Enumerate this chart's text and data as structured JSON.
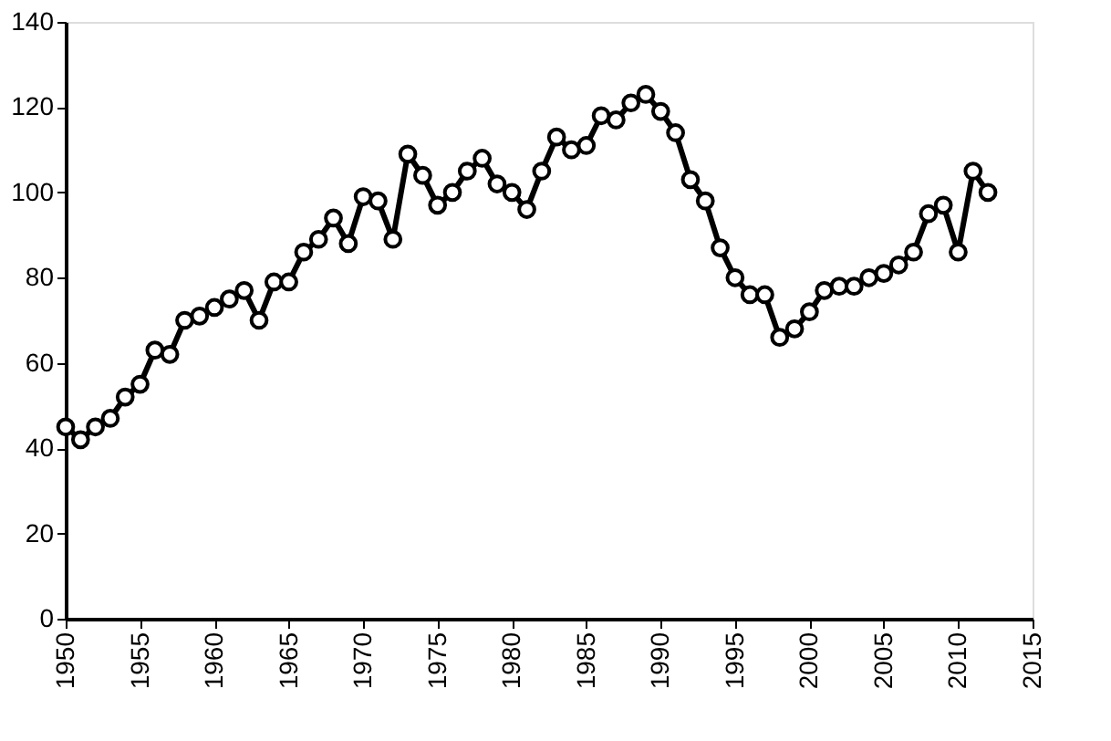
{
  "chart_data": {
    "type": "line",
    "x": [
      1950,
      1951,
      1952,
      1953,
      1954,
      1955,
      1956,
      1957,
      1958,
      1959,
      1960,
      1961,
      1962,
      1963,
      1964,
      1965,
      1966,
      1967,
      1968,
      1969,
      1970,
      1971,
      1972,
      1973,
      1974,
      1975,
      1976,
      1977,
      1978,
      1979,
      1980,
      1981,
      1982,
      1983,
      1984,
      1985,
      1986,
      1987,
      1988,
      1989,
      1990,
      1991,
      1992,
      1993,
      1994,
      1995,
      1996,
      1997,
      1998,
      1999,
      2000,
      2001,
      2002,
      2003,
      2004,
      2005,
      2006,
      2007,
      2008,
      2009,
      2010,
      2011,
      2012
    ],
    "series": [
      {
        "color": "#000000",
        "values": [
          45,
          42,
          45,
          47,
          52,
          55,
          63,
          62,
          70,
          71,
          73,
          75,
          77,
          70,
          79,
          79,
          86,
          89,
          94,
          88,
          99,
          98,
          89,
          109,
          104,
          97,
          100,
          105,
          108,
          102,
          100,
          96,
          105,
          113,
          110,
          111,
          118,
          117,
          121,
          123,
          119,
          114,
          103,
          98,
          87,
          80,
          76,
          76,
          66,
          68,
          72,
          77,
          78,
          78,
          80,
          81,
          83,
          86,
          95,
          97,
          86,
          105,
          100
        ]
      }
    ],
    "xlim": [
      1950,
      2015
    ],
    "xticks": [
      1950,
      1955,
      1960,
      1965,
      1970,
      1975,
      1980,
      1985,
      1990,
      1995,
      2000,
      2005,
      2010,
      2015
    ],
    "ylim": [
      0,
      140
    ],
    "yticks": [
      0,
      20,
      40,
      60,
      80,
      100,
      120,
      140
    ],
    "grid": false,
    "legend": false,
    "marker": "circle",
    "line_style": "solid"
  }
}
